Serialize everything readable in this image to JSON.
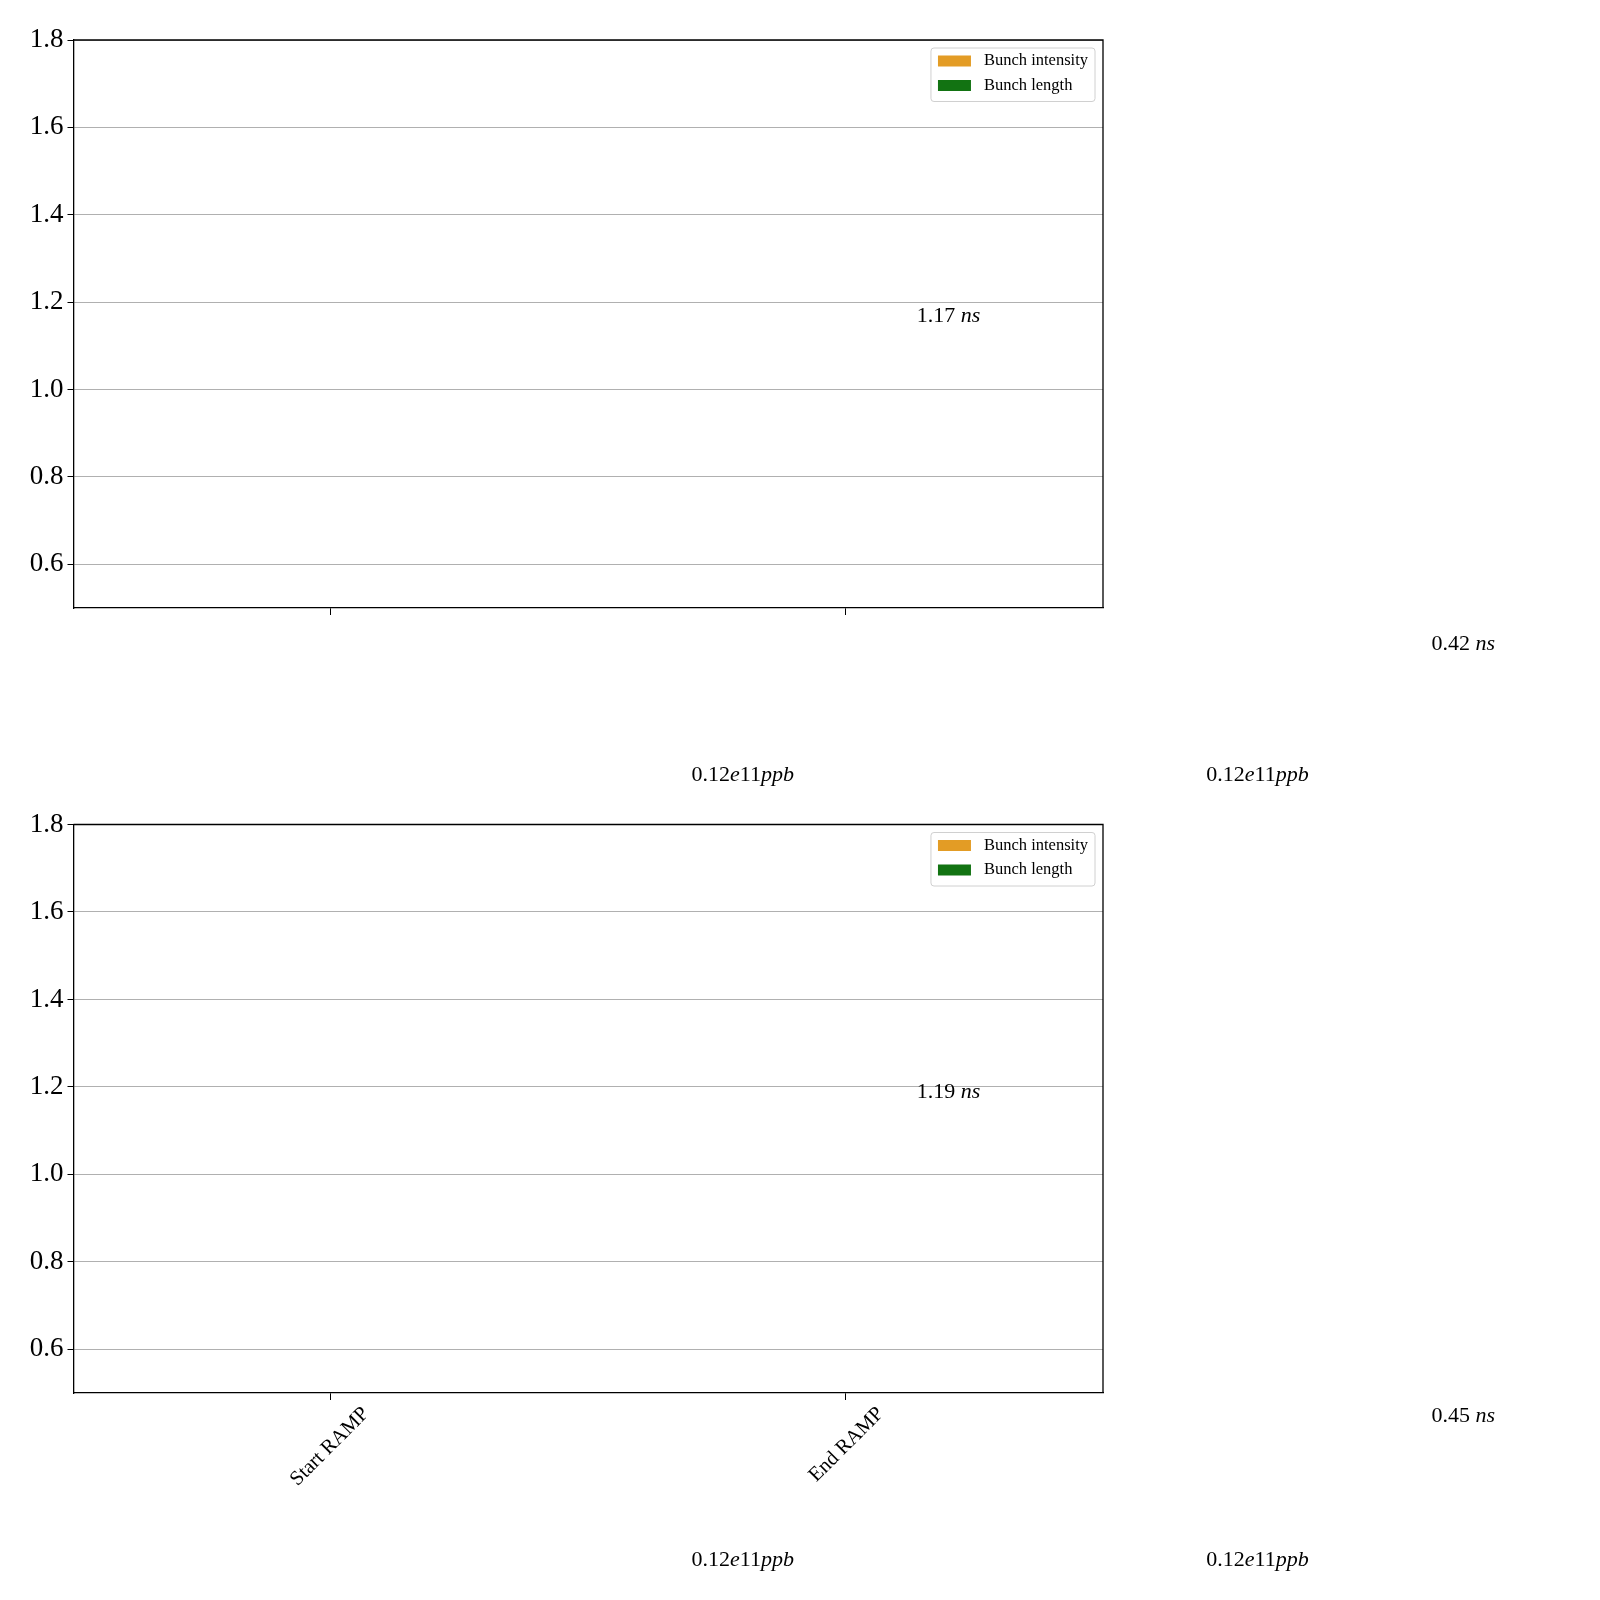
{
  "chart_data": [
    {
      "type": "bar",
      "categories": [
        null,
        null
      ],
      "series": [
        {
          "name": "Bunch intensity",
          "color": "#e39c25",
          "values": [
            null,
            null
          ]
        },
        {
          "name": "Bunch length",
          "color": "#127312",
          "values": [
            null,
            null
          ]
        }
      ],
      "ylim": [
        0.5,
        1.8
      ],
      "yticks": [
        0.6,
        0.8,
        {
          "value": 1,
          "label": "1.0"
        },
        1.2,
        1.4,
        1.6,
        1.8
      ],
      "grid": "y",
      "legend": "top right",
      "annotations": [
        "1.17 ns",
        "0.42 ns",
        "0.12e11ppb",
        "0.12e11ppb"
      ]
    },
    {
      "type": "bar",
      "categories": [
        "Start RAMP",
        "End RAMP"
      ],
      "series": [
        {
          "name": "Bunch intensity",
          "color": "#e39c25",
          "values": [
            null,
            null
          ]
        },
        {
          "name": "Bunch length",
          "color": "#127312",
          "values": [
            null,
            null
          ]
        }
      ],
      "ylim": [
        0.5,
        1.8
      ],
      "yticks": [
        0.6,
        0.8,
        {
          "value": 1,
          "label": "1.0"
        },
        1.2,
        1.4,
        1.6,
        1.8
      ],
      "grid": "y",
      "legend": "top right",
      "annotations": [
        "1.19 ns",
        "0.45 ns",
        "0.12e11ppb",
        "0.12e11ppb"
      ]
    }
  ]
}
